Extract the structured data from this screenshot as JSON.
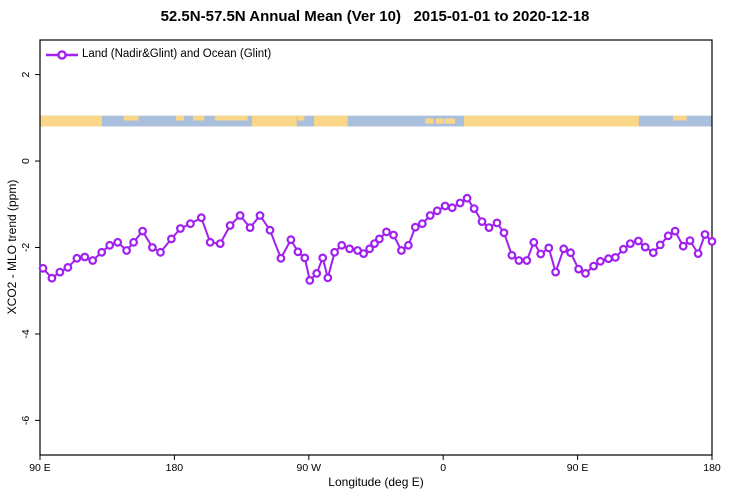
{
  "title": "52.5N-57.5N Annual Mean (Ver 10)   2015-01-01 to 2020-12-18",
  "legend": {
    "label": "Land (Nadir&Glint) and Ocean (Glint)"
  },
  "colors": {
    "series": "#A020F0",
    "land": "#FAD689",
    "ocean": "#A9BFDB",
    "axis": "#000000",
    "background": "#FFFFFF"
  },
  "chart_data": {
    "type": "line",
    "title": "52.5N-57.5N Annual Mean (Ver 10)   2015-01-01 to 2020-12-18",
    "xlabel": "Longitude (deg E)",
    "ylabel": "XCO2 - MLO trend (ppm)",
    "xlim": [
      90,
      540
    ],
    "ylim": [
      -6.8,
      2.8
    ],
    "grid": false,
    "legend_position": "top-left",
    "x_ticks": [
      {
        "value": 90,
        "label": "90 E"
      },
      {
        "value": 180,
        "label": "180"
      },
      {
        "value": 270,
        "label": "90 W"
      },
      {
        "value": 360,
        "label": "0"
      },
      {
        "value": 450,
        "label": "90 E"
      },
      {
        "value": 540,
        "label": "180"
      }
    ],
    "y_ticks": [
      {
        "value": 2,
        "label": "2"
      },
      {
        "value": 0,
        "label": "0"
      },
      {
        "value": -2,
        "label": "-2"
      },
      {
        "value": -4,
        "label": "-4"
      },
      {
        "value": -6,
        "label": "-6"
      }
    ],
    "land_ocean_strip": {
      "description": "mini land/ocean mask strip across all longitudes",
      "value_top": 1.05,
      "value_bottom": 0.8,
      "land_segments": [
        [
          90,
          131.5
        ],
        [
          232,
          262
        ],
        [
          273.5,
          296
        ],
        [
          374,
          491
        ]
      ],
      "coast_flecks_top": [
        [
          146,
          156
        ],
        [
          181,
          186.5
        ],
        [
          192.5,
          200
        ],
        [
          207,
          229
        ],
        [
          262.5,
          267
        ],
        [
          514,
          523
        ]
      ],
      "coast_flecks_mid": [
        [
          348,
          353.5
        ],
        [
          355,
          360.5
        ],
        [
          361,
          368
        ]
      ]
    },
    "series": [
      {
        "name": "Land (Nadir&Glint) and Ocean (Glint)",
        "color": "#A020F0",
        "marker": "open-circle",
        "points": [
          [
            92,
            -2.48
          ],
          [
            98,
            -2.71
          ],
          [
            103.3,
            -2.57
          ],
          [
            108.7,
            -2.46
          ],
          [
            114.7,
            -2.25
          ],
          [
            120,
            -2.22
          ],
          [
            125.3,
            -2.3
          ],
          [
            131.3,
            -2.11
          ],
          [
            136.7,
            -1.95
          ],
          [
            142,
            -1.88
          ],
          [
            148,
            -2.07
          ],
          [
            152.7,
            -1.88
          ],
          [
            158.7,
            -1.62
          ],
          [
            165.3,
            -2.0
          ],
          [
            170.7,
            -2.11
          ],
          [
            178,
            -1.8
          ],
          [
            184,
            -1.56
          ],
          [
            190.7,
            -1.45
          ],
          [
            198,
            -1.31
          ],
          [
            204,
            -1.88
          ],
          [
            210.7,
            -1.91
          ],
          [
            217.3,
            -1.49
          ],
          [
            224,
            -1.26
          ],
          [
            230.7,
            -1.54
          ],
          [
            237.3,
            -1.26
          ],
          [
            244,
            -1.6
          ],
          [
            251.3,
            -2.25
          ],
          [
            258,
            -1.82
          ],
          [
            262.7,
            -2.1
          ],
          [
            267.3,
            -2.24
          ],
          [
            270.7,
            -2.76
          ],
          [
            275.3,
            -2.6
          ],
          [
            279.3,
            -2.24
          ],
          [
            282.7,
            -2.7
          ],
          [
            287.3,
            -2.11
          ],
          [
            292,
            -1.95
          ],
          [
            297.3,
            -2.03
          ],
          [
            302.7,
            -2.07
          ],
          [
            306.7,
            -2.14
          ],
          [
            310.7,
            -2.03
          ],
          [
            314,
            -1.91
          ],
          [
            317.3,
            -1.8
          ],
          [
            322,
            -1.64
          ],
          [
            326.7,
            -1.71
          ],
          [
            332,
            -2.07
          ],
          [
            336.7,
            -1.95
          ],
          [
            341.3,
            -1.53
          ],
          [
            346,
            -1.45
          ],
          [
            351.3,
            -1.26
          ],
          [
            356,
            -1.15
          ],
          [
            361.3,
            -1.04
          ],
          [
            366,
            -1.08
          ],
          [
            371.3,
            -0.97
          ],
          [
            376,
            -0.86
          ],
          [
            380.7,
            -1.1
          ],
          [
            386,
            -1.4
          ],
          [
            390.7,
            -1.54
          ],
          [
            396,
            -1.43
          ],
          [
            400.7,
            -1.66
          ],
          [
            406,
            -2.18
          ],
          [
            410.7,
            -2.3
          ],
          [
            416,
            -2.3
          ],
          [
            420.7,
            -1.88
          ],
          [
            425.3,
            -2.15
          ],
          [
            430.7,
            -2.01
          ],
          [
            435.3,
            -2.57
          ],
          [
            440.7,
            -2.03
          ],
          [
            445.3,
            -2.12
          ],
          [
            450.7,
            -2.5
          ],
          [
            455.3,
            -2.6
          ],
          [
            460.7,
            -2.43
          ],
          [
            465.3,
            -2.32
          ],
          [
            470.7,
            -2.26
          ],
          [
            475.3,
            -2.23
          ],
          [
            480.7,
            -2.04
          ],
          [
            485.3,
            -1.91
          ],
          [
            490.7,
            -1.85
          ],
          [
            495.3,
            -1.99
          ],
          [
            500.7,
            -2.12
          ],
          [
            505.3,
            -1.94
          ],
          [
            510.7,
            -1.73
          ],
          [
            515.3,
            -1.62
          ],
          [
            520.7,
            -1.97
          ],
          [
            525.3,
            -1.84
          ],
          [
            530.7,
            -2.14
          ],
          [
            535.3,
            -1.7
          ],
          [
            540,
            -1.86
          ]
        ]
      }
    ]
  }
}
